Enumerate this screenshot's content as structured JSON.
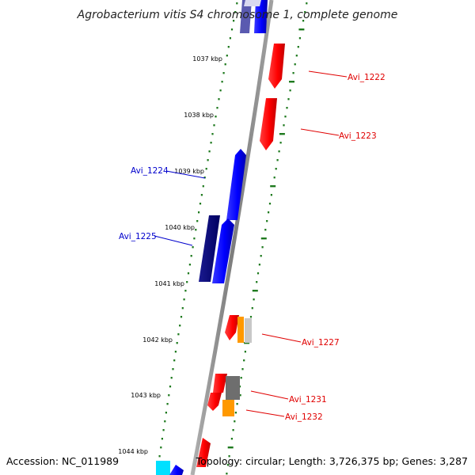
{
  "title": "Agrobacterium vitis S4 chromosome 1, complete genome",
  "footer": {
    "accession": "Accession: NC_011989",
    "summary": "Topology: circular; Length: 3,726,375 bp; Genes: 3,287"
  },
  "ticks": [
    "1037 kbp",
    "1038 kbp",
    "1039 kbp",
    "1040 kbp",
    "1041 kbp",
    "1042 kbp",
    "1043 kbp",
    "1044 kbp"
  ],
  "gene_labels": [
    {
      "text": "Avi_1222",
      "color": "#e00000"
    },
    {
      "text": "Avi_1223",
      "color": "#e00000"
    },
    {
      "text": "Avi_1224",
      "color": "#0000cc"
    },
    {
      "text": "Avi_1225",
      "color": "#0000cc"
    },
    {
      "text": "Avi_1227",
      "color": "#e00000"
    },
    {
      "text": "Avi_1231",
      "color": "#e00000"
    },
    {
      "text": "Avi_1232",
      "color": "#e00000"
    }
  ],
  "colors": {
    "backbone": "#8c8c8c",
    "dots": "#1f7a1f",
    "forward_cds": "#ff0000",
    "reverse_cds": "#0000ff",
    "dark_cds": "#000080",
    "orange_cds": "#ff9900",
    "grey_cds": "#6e6e6e",
    "light_grey_cds": "#c8c8c8",
    "cyan_cds": "#00e0ff"
  }
}
